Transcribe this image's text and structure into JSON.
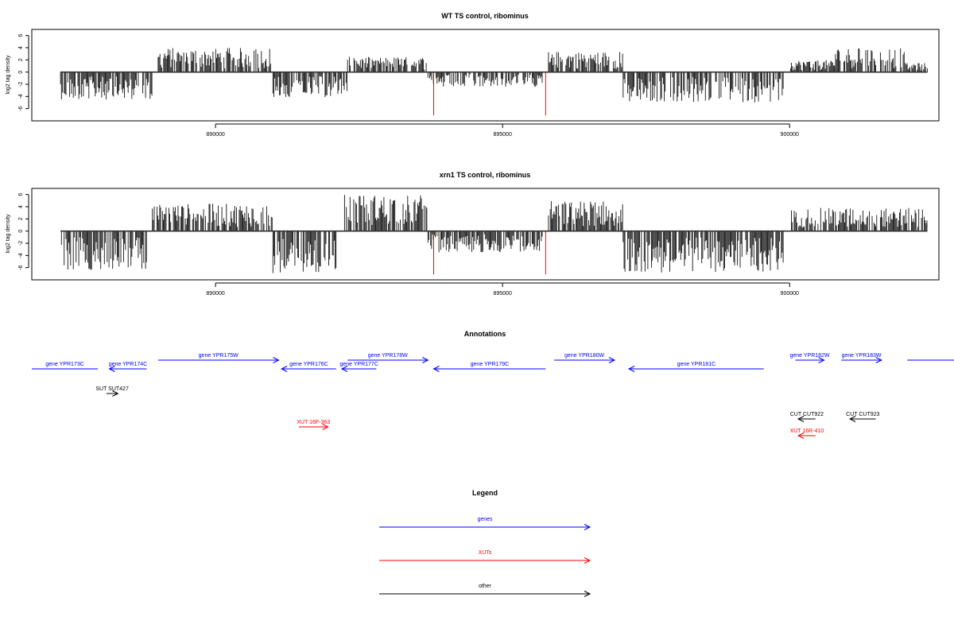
{
  "colors": {
    "genes": "#0000ff",
    "xuts": "#ff0000",
    "other": "#000000",
    "axis": "#000000",
    "signal": "#000000",
    "marker": "#ff0000"
  },
  "chart_data": [
    {
      "type": "bar",
      "title": "WT TS control, ribominus",
      "ylabel": "log2 tag density",
      "xlim": [
        886800,
        902600
      ],
      "ylim": [
        -8,
        7
      ],
      "yticks": [
        -6,
        -4,
        -2,
        0,
        2,
        4,
        6
      ],
      "xticks": [
        890000,
        895000,
        900000
      ],
      "xtick_labels": [
        "890000",
        "895000",
        "900000"
      ],
      "markers": [
        893800,
        895750
      ],
      "segments": [
        {
          "x0": 887300,
          "x1": 888900,
          "sign": -1,
          "max": 4.5
        },
        {
          "x0": 889000,
          "x1": 891000,
          "sign": 1,
          "max": 4.0
        },
        {
          "x0": 891000,
          "x1": 892300,
          "sign": -1,
          "max": 4.2
        },
        {
          "x0": 892300,
          "x1": 893700,
          "sign": 1,
          "max": 2.5
        },
        {
          "x0": 893700,
          "x1": 895700,
          "sign": -1,
          "max": 2.5
        },
        {
          "x0": 895800,
          "x1": 897100,
          "sign": 1,
          "max": 3.4
        },
        {
          "x0": 897100,
          "x1": 899900,
          "sign": -1,
          "max": 5.0
        },
        {
          "x0": 900000,
          "x1": 900800,
          "sign": 1,
          "max": 2.0
        },
        {
          "x0": 900800,
          "x1": 902000,
          "sign": 1,
          "max": 4.0
        },
        {
          "x0": 902000,
          "x1": 902400,
          "sign": 1,
          "max": 1.5
        }
      ]
    },
    {
      "type": "bar",
      "title": "xrn1 TS control, ribominus",
      "ylabel": "log2 tag density",
      "xlim": [
        886800,
        902600
      ],
      "ylim": [
        -8,
        7
      ],
      "yticks": [
        -6,
        -4,
        -2,
        0,
        2,
        4,
        6
      ],
      "xticks": [
        890000,
        895000,
        900000
      ],
      "xtick_labels": [
        "890000",
        "895000",
        "900000"
      ],
      "markers": [
        893800,
        895750
      ],
      "segments": [
        {
          "x0": 887300,
          "x1": 888800,
          "sign": -1,
          "max": 6.5
        },
        {
          "x0": 888900,
          "x1": 891000,
          "sign": 1,
          "max": 4.5
        },
        {
          "x0": 891000,
          "x1": 892100,
          "sign": -1,
          "max": 7.0
        },
        {
          "x0": 892200,
          "x1": 893700,
          "sign": 1,
          "max": 6.0
        },
        {
          "x0": 893700,
          "x1": 895700,
          "sign": -1,
          "max": 3.5
        },
        {
          "x0": 895800,
          "x1": 897100,
          "sign": 1,
          "max": 5.0
        },
        {
          "x0": 897100,
          "x1": 899900,
          "sign": -1,
          "max": 6.8
        },
        {
          "x0": 900000,
          "x1": 900800,
          "sign": 1,
          "max": 3.8
        },
        {
          "x0": 900800,
          "x1": 902400,
          "sign": 1,
          "max": 3.8
        }
      ]
    }
  ],
  "annotations": {
    "title": "Annotations",
    "features": [
      {
        "label": "gene YPR173C",
        "type": "genes",
        "x0": 886800,
        "x1": 887950,
        "dir": "line",
        "row": 1
      },
      {
        "label": "gene YPR174C",
        "type": "genes",
        "x0": 888150,
        "x1": 888800,
        "dir": "left",
        "row": 1
      },
      {
        "label": "gene YPR175W",
        "type": "genes",
        "x0": 889000,
        "x1": 891100,
        "dir": "right",
        "row": 0
      },
      {
        "label": "gene YPR176C",
        "type": "genes",
        "x0": 891150,
        "x1": 892100,
        "dir": "left",
        "row": 1
      },
      {
        "label": "gene YPR177C",
        "type": "genes",
        "x0": 892200,
        "x1": 892800,
        "dir": "left",
        "row": 1
      },
      {
        "label": "gene YPR178W",
        "type": "genes",
        "x0": 892300,
        "x1": 893700,
        "dir": "right",
        "row": 0
      },
      {
        "label": "gene YPR179C",
        "type": "genes",
        "x0": 893800,
        "x1": 895750,
        "dir": "left",
        "row": 1
      },
      {
        "label": "gene YPR180W",
        "type": "genes",
        "x0": 895900,
        "x1": 896950,
        "dir": "right",
        "row": 0
      },
      {
        "label": "gene YPR181C",
        "type": "genes",
        "x0": 897200,
        "x1": 899550,
        "dir": "left",
        "row": 1
      },
      {
        "label": "gene YPR182W",
        "type": "genes",
        "x0": 900100,
        "x1": 900600,
        "dir": "right",
        "row": 0
      },
      {
        "label": "gene YPR183W",
        "type": "genes",
        "x0": 900900,
        "x1": 901600,
        "dir": "right",
        "row": 0
      },
      {
        "label": "",
        "type": "genes",
        "x0": 902050,
        "x1": 902950,
        "dir": "line",
        "row": 0
      },
      {
        "label": "SUT SUT427",
        "type": "other",
        "x0": 888100,
        "x1": 888300,
        "dir": "right",
        "row": 2
      },
      {
        "label": "XUT 16F-363",
        "type": "xuts",
        "x0": 891450,
        "x1": 891960,
        "dir": "right",
        "row": 3
      },
      {
        "label": "CUT CUT922",
        "type": "other",
        "x0": 900150,
        "x1": 900450,
        "dir": "left",
        "row": 4
      },
      {
        "label": "CUT CUT923",
        "type": "other",
        "x0": 901050,
        "x1": 901500,
        "dir": "left",
        "row": 4
      },
      {
        "label": "XUT 16R-410",
        "type": "xuts",
        "x0": 900150,
        "x1": 900450,
        "dir": "left",
        "row": 5
      }
    ]
  },
  "legend": {
    "title": "Legend",
    "entries": [
      {
        "label": "genes",
        "type": "genes"
      },
      {
        "label": "XUTs",
        "type": "xuts"
      },
      {
        "label": "other",
        "type": "other"
      }
    ]
  }
}
